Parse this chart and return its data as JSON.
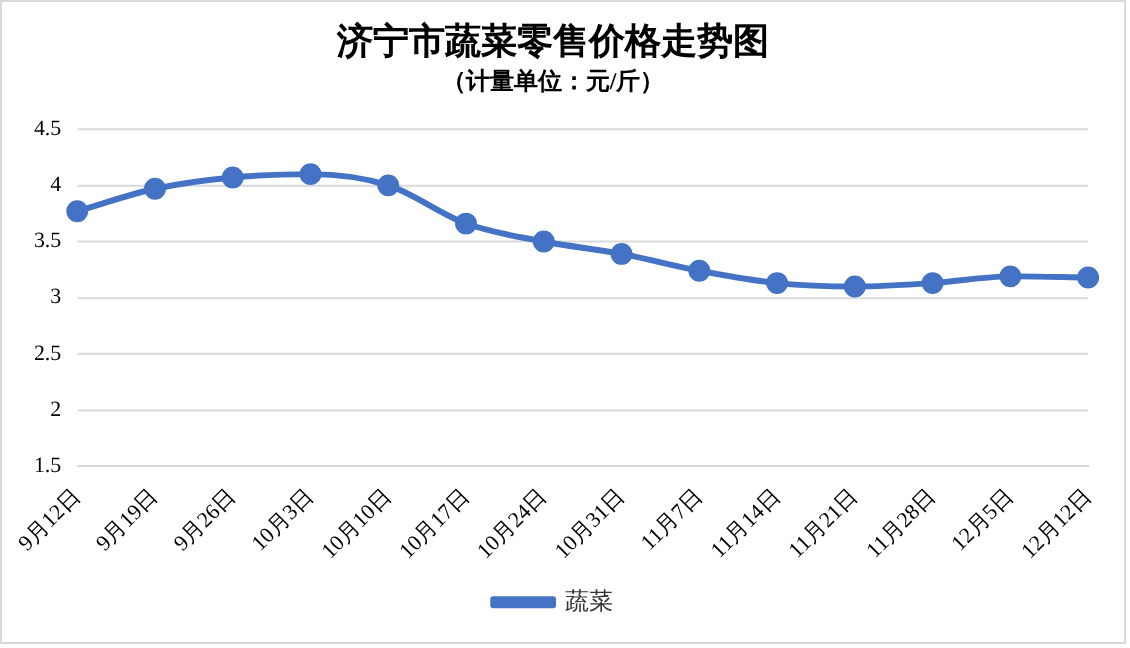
{
  "chart_data": {
    "type": "line",
    "title": "济宁市蔬菜零售价格走势图",
    "subtitle": "（计量单位：元/斤）",
    "categories": [
      "9月12日",
      "9月19日",
      "9月26日",
      "10月3日",
      "10月10日",
      "10月17日",
      "10月24日",
      "10月31日",
      "11月7日",
      "11月14日",
      "11月21日",
      "11月28日",
      "12月5日",
      "12月12日"
    ],
    "series": [
      {
        "name": "蔬菜",
        "color": "#4472c4",
        "values": [
          3.77,
          3.97,
          4.07,
          4.1,
          4.0,
          3.66,
          3.5,
          3.39,
          3.24,
          3.13,
          3.1,
          3.13,
          3.19,
          3.18
        ]
      }
    ],
    "ylim": [
      1.5,
      4.5
    ],
    "yticks": [
      1.5,
      2,
      2.5,
      3,
      3.5,
      4,
      4.5
    ],
    "grid": "y",
    "legend": "bottom",
    "marker": "circle",
    "line_style": "solid"
  }
}
